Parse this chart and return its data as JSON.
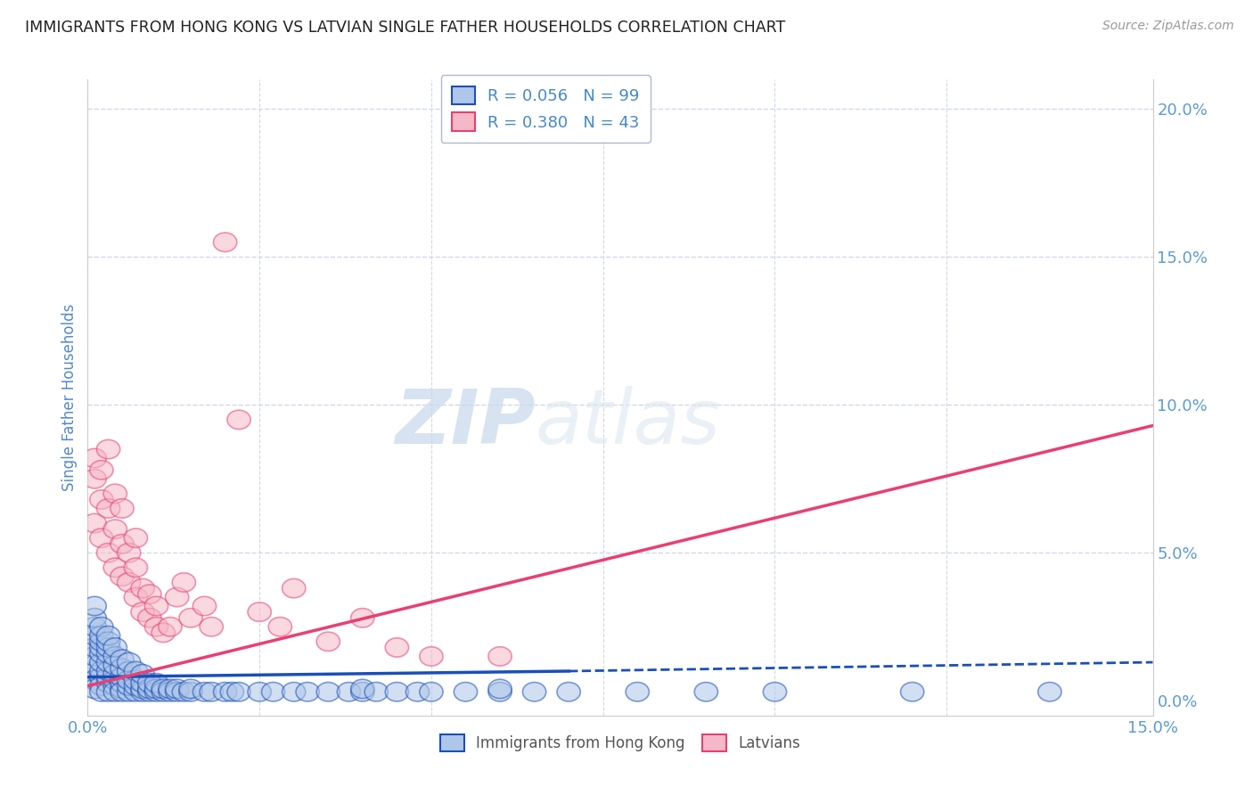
{
  "title": "IMMIGRANTS FROM HONG KONG VS LATVIAN SINGLE FATHER HOUSEHOLDS CORRELATION CHART",
  "source": "Source: ZipAtlas.com",
  "ylabel": "Single Father Households",
  "xlabel": "",
  "x_tick_labels": [
    "0.0%",
    "",
    "",
    "",
    "",
    "",
    "",
    "",
    "",
    "",
    "",
    "",
    "",
    "",
    "",
    "15.0%"
  ],
  "y_tick_labels_right": [
    "20.0%",
    "15.0%",
    "10.0%",
    "5.0%",
    "0.0%"
  ],
  "xlim": [
    0.0,
    0.155
  ],
  "ylim": [
    -0.005,
    0.21
  ],
  "series1_label": "Immigrants from Hong Kong",
  "series2_label": "Latvians",
  "series1_color": "#aec6e8",
  "series2_color": "#f5b8c8",
  "trend1_color": "#1a4fba",
  "trend2_color": "#e84070",
  "watermark_zip": "ZIP",
  "watermark_atlas": "atlas",
  "grid_color": "#d0d8e8",
  "bg_color": "#ffffff",
  "title_color": "#222222",
  "axis_label_color": "#5588cc",
  "tick_color": "#5b9bd5",
  "legend_text_color": "#4488cc",
  "trend1_x": [
    0.0,
    0.07,
    0.155
  ],
  "trend1_y": [
    0.008,
    0.01,
    0.013
  ],
  "trend1_dash_start": 0.075,
  "trend2_x": [
    0.0,
    0.155
  ],
  "trend2_y": [
    0.005,
    0.093
  ],
  "hk_x": [
    0.001,
    0.001,
    0.001,
    0.001,
    0.001,
    0.001,
    0.001,
    0.001,
    0.001,
    0.001,
    0.002,
    0.002,
    0.002,
    0.002,
    0.002,
    0.002,
    0.002,
    0.002,
    0.002,
    0.002,
    0.003,
    0.003,
    0.003,
    0.003,
    0.003,
    0.003,
    0.003,
    0.003,
    0.003,
    0.004,
    0.004,
    0.004,
    0.004,
    0.004,
    0.004,
    0.004,
    0.005,
    0.005,
    0.005,
    0.005,
    0.005,
    0.005,
    0.006,
    0.006,
    0.006,
    0.006,
    0.006,
    0.007,
    0.007,
    0.007,
    0.007,
    0.008,
    0.008,
    0.008,
    0.008,
    0.009,
    0.009,
    0.009,
    0.01,
    0.01,
    0.01,
    0.011,
    0.011,
    0.012,
    0.012,
    0.013,
    0.013,
    0.014,
    0.015,
    0.015,
    0.017,
    0.018,
    0.02,
    0.021,
    0.022,
    0.025,
    0.027,
    0.03,
    0.032,
    0.035,
    0.038,
    0.04,
    0.04,
    0.042,
    0.045,
    0.048,
    0.05,
    0.055,
    0.06,
    0.06,
    0.065,
    0.07,
    0.08,
    0.09,
    0.1,
    0.12,
    0.14
  ],
  "hk_y": [
    0.01,
    0.012,
    0.015,
    0.018,
    0.022,
    0.025,
    0.028,
    0.032,
    0.007,
    0.004,
    0.008,
    0.01,
    0.013,
    0.016,
    0.018,
    0.02,
    0.005,
    0.003,
    0.022,
    0.025,
    0.006,
    0.008,
    0.01,
    0.013,
    0.016,
    0.018,
    0.003,
    0.02,
    0.022,
    0.005,
    0.007,
    0.009,
    0.012,
    0.015,
    0.003,
    0.018,
    0.004,
    0.006,
    0.008,
    0.011,
    0.014,
    0.003,
    0.003,
    0.005,
    0.007,
    0.01,
    0.013,
    0.003,
    0.005,
    0.007,
    0.01,
    0.003,
    0.004,
    0.006,
    0.009,
    0.003,
    0.004,
    0.006,
    0.003,
    0.004,
    0.006,
    0.003,
    0.004,
    0.003,
    0.004,
    0.003,
    0.004,
    0.003,
    0.003,
    0.004,
    0.003,
    0.003,
    0.003,
    0.003,
    0.003,
    0.003,
    0.003,
    0.003,
    0.003,
    0.003,
    0.003,
    0.003,
    0.004,
    0.003,
    0.003,
    0.003,
    0.003,
    0.003,
    0.003,
    0.004,
    0.003,
    0.003,
    0.003,
    0.003,
    0.003,
    0.003,
    0.003
  ],
  "lv_x": [
    0.001,
    0.001,
    0.001,
    0.002,
    0.002,
    0.002,
    0.003,
    0.003,
    0.003,
    0.004,
    0.004,
    0.004,
    0.005,
    0.005,
    0.005,
    0.006,
    0.006,
    0.007,
    0.007,
    0.007,
    0.008,
    0.008,
    0.009,
    0.009,
    0.01,
    0.01,
    0.011,
    0.012,
    0.013,
    0.014,
    0.015,
    0.017,
    0.018,
    0.02,
    0.022,
    0.025,
    0.028,
    0.03,
    0.035,
    0.04,
    0.045,
    0.05,
    0.06
  ],
  "lv_y": [
    0.075,
    0.06,
    0.082,
    0.055,
    0.068,
    0.078,
    0.05,
    0.065,
    0.085,
    0.045,
    0.058,
    0.07,
    0.042,
    0.053,
    0.065,
    0.04,
    0.05,
    0.035,
    0.045,
    0.055,
    0.03,
    0.038,
    0.028,
    0.036,
    0.025,
    0.032,
    0.023,
    0.025,
    0.035,
    0.04,
    0.028,
    0.032,
    0.025,
    0.155,
    0.095,
    0.03,
    0.025,
    0.038,
    0.02,
    0.028,
    0.018,
    0.015,
    0.015
  ]
}
